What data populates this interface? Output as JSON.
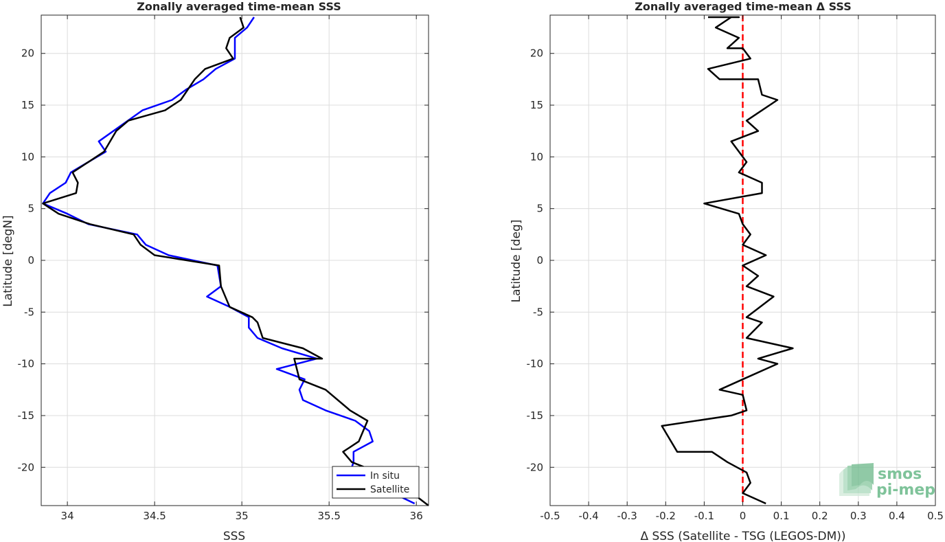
{
  "chart_data": [
    {
      "type": "line",
      "title": "Zonally averaged time-mean SSS",
      "xlabel": "SSS",
      "ylabel": "Latitude [degN]",
      "xlim": [
        33.85,
        36.07
      ],
      "ylim": [
        -23.7,
        23.7
      ],
      "xticks": [
        34,
        34.5,
        35,
        35.5,
        36
      ],
      "yticks": [
        -20,
        -15,
        -10,
        -5,
        0,
        5,
        10,
        15,
        20
      ],
      "grid": true,
      "legend": "bottom-right",
      "series": [
        {
          "name": "In situ",
          "color": "#0000ff",
          "x": [
            35.99,
            35.62,
            35.64,
            35.64,
            35.75,
            35.73,
            35.65,
            35.48,
            35.35,
            35.33,
            35.36,
            35.2,
            35.43,
            35.23,
            35.09,
            35.04,
            35.04,
            34.93,
            34.8,
            34.88,
            34.86,
            34.58,
            34.45,
            34.4,
            34.12,
            34,
            33.86,
            33.9,
            33.99,
            34.02,
            34.22,
            34.18,
            34.43,
            34.6,
            34.68,
            34.78,
            34.85,
            34.96,
            34.96,
            35.03,
            35.07
          ],
          "y": [
            -23.5,
            -20.5,
            -19.5,
            -18.5,
            -17.5,
            -16.5,
            -15.5,
            -14.5,
            -13.5,
            -12.5,
            -11.5,
            -10.5,
            -9.5,
            -8.5,
            -7.5,
            -6.5,
            -5.5,
            -4.5,
            -3.5,
            -2.5,
            -0.5,
            0.5,
            1.5,
            2.5,
            3.5,
            4.5,
            5.5,
            6.5,
            7.5,
            8.5,
            10.5,
            11.5,
            14.5,
            15.5,
            16.5,
            17.5,
            18.5,
            19.5,
            21.5,
            22.5,
            23.5
          ]
        },
        {
          "name": "Satellite",
          "color": "#000000",
          "x": [
            36.07,
            35.9,
            35.78,
            35.63,
            35.58,
            35.67,
            35.72,
            35.62,
            35.48,
            35.33,
            35.3,
            35.46,
            35.35,
            35.12,
            35.09,
            35.06,
            34.93,
            34.88,
            34.87,
            34.5,
            34.42,
            34.38,
            34.13,
            33.95,
            33.86,
            34.05,
            34.06,
            34.03,
            34.21,
            34.28,
            34.35,
            34.56,
            34.65,
            34.69,
            34.73,
            34.79,
            34.95,
            34.91,
            34.93,
            35.01,
            34.99
          ],
          "y": [
            -23.7,
            -21.5,
            -20.5,
            -19.5,
            -18.5,
            -17.5,
            -15.5,
            -14.5,
            -12.5,
            -11.5,
            -9.5,
            -9.5,
            -8.5,
            -7.5,
            -6,
            -5.5,
            -4.5,
            -2.5,
            -0.5,
            0.5,
            1.5,
            2.5,
            3.5,
            4.5,
            5.5,
            6.5,
            7.5,
            8.5,
            10.5,
            12.5,
            13.5,
            14.5,
            15.5,
            16.5,
            17.5,
            18.5,
            19.5,
            20.5,
            21.5,
            22.5,
            23.5
          ]
        }
      ]
    },
    {
      "type": "line",
      "title": "Zonally averaged time-mean Δ SSS",
      "xlabel": "Δ SSS (Satellite - TSG (LEGOS-DM))",
      "ylabel": "Latitude [deg]",
      "xlim": [
        -0.5,
        0.5
      ],
      "ylim": [
        -23.7,
        23.7
      ],
      "xticks": [
        -0.5,
        -0.4,
        -0.3,
        -0.2,
        -0.1,
        0,
        0.1,
        0.2,
        0.3,
        0.4,
        0.5
      ],
      "yticks": [
        -20,
        -15,
        -10,
        -5,
        0,
        5,
        10,
        15,
        20
      ],
      "grid": true,
      "reference_line": {
        "x": 0,
        "color": "#ff0000",
        "style": "dashed"
      },
      "series": [
        {
          "color": "#000000",
          "x": [
            0.06,
            0,
            0.02,
            0.01,
            -0.04,
            -0.08,
            -0.17,
            -0.21,
            -0.03,
            0.01,
            0,
            -0.06,
            0,
            0.09,
            0.04,
            0.13,
            0.01,
            0.05,
            0.01,
            0.08,
            0.01,
            0.04,
            0,
            0.06,
            0,
            0.02,
            0,
            -0.01,
            -0.1,
            0.05,
            0.05,
            -0.01,
            0.01,
            -0.01,
            -0.03,
            0.04,
            0.01,
            0.05,
            0.09,
            0.05,
            0.04,
            -0.06,
            -0.09,
            0.02,
            0,
            -0.04,
            -0.01,
            -0.07,
            -0.03,
            -0.01,
            -0.09
          ],
          "y": [
            -23.5,
            -22.5,
            -21.5,
            -20.5,
            -19.5,
            -18.5,
            -18.5,
            -16,
            -15,
            -14.5,
            -13,
            -12.5,
            -11.5,
            -10,
            -9.5,
            -8.5,
            -7.5,
            -6,
            -5.5,
            -3.5,
            -2.5,
            -1.5,
            -0.5,
            0.5,
            1.5,
            2.5,
            3.5,
            4.5,
            5.5,
            6.5,
            7.5,
            8.5,
            9.5,
            10.5,
            11.5,
            12.5,
            13.5,
            14.5,
            15.5,
            16,
            17.5,
            17.5,
            18.5,
            19.5,
            20.5,
            20.5,
            21.5,
            22.5,
            23.5,
            23.5,
            23.5
          ]
        }
      ]
    }
  ],
  "logo": {
    "line1": "smos",
    "line2": "pi-mep",
    "color": "#7fc39a"
  }
}
